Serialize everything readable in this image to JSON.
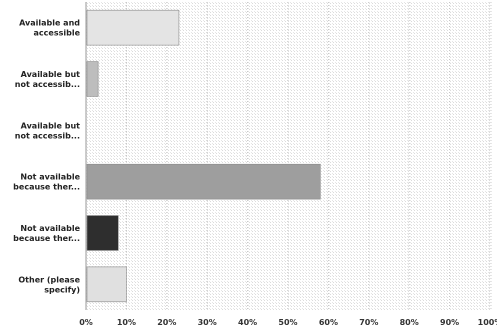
{
  "chart_data": {
    "type": "bar",
    "orientation": "horizontal",
    "categories": [
      [
        "Available and",
        "accessible"
      ],
      [
        "Available but",
        "not accessib..."
      ],
      [
        "Available but",
        "not accessib..."
      ],
      [
        "Not available",
        "because ther..."
      ],
      [
        "Not available",
        "because ther..."
      ],
      [
        "Other (please",
        "specify)"
      ]
    ],
    "values": [
      23,
      3,
      0,
      58,
      8,
      10
    ],
    "xlim": [
      0,
      100
    ],
    "x_ticks": [
      0,
      10,
      20,
      30,
      40,
      50,
      60,
      70,
      80,
      90,
      100
    ],
    "x_tick_labels": [
      "0%",
      "10%",
      "20%",
      "30%",
      "40%",
      "50%",
      "60%",
      "70%",
      "80%",
      "90%",
      "100%"
    ],
    "bar_colors": [
      "#e4e4e4",
      "#bdbdbd",
      "#a8a8a8",
      "#9e9e9e",
      "#2e2e2e",
      "#e0e0e0"
    ],
    "grid": true,
    "title": "",
    "xlabel": "",
    "ylabel": ""
  }
}
